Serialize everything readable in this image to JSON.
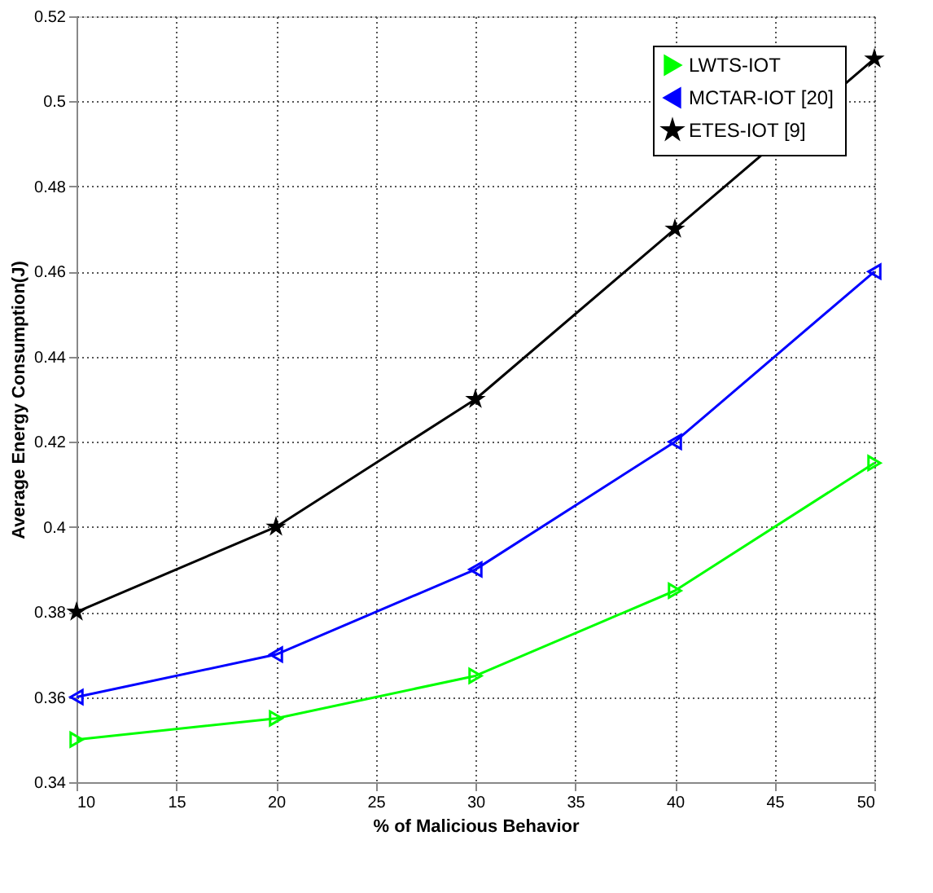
{
  "chart_data": {
    "type": "line",
    "xlabel": "% of Malicious Behavior",
    "ylabel": "Average Energy Consumption(J)",
    "x": [
      10,
      20,
      30,
      40,
      50
    ],
    "series": [
      {
        "name": "LWTS-IOT",
        "color": "#00ff00",
        "marker": "triangle-right",
        "values": [
          0.35,
          0.355,
          0.365,
          0.385,
          0.415
        ]
      },
      {
        "name": "MCTAR-IOT [20]",
        "color": "#0000ff",
        "marker": "triangle-left",
        "values": [
          0.36,
          0.37,
          0.39,
          0.42,
          0.46
        ]
      },
      {
        "name": "ETES-IOT [9]",
        "color": "#000000",
        "marker": "star",
        "values": [
          0.38,
          0.4,
          0.43,
          0.47,
          0.51
        ]
      }
    ],
    "xlim": [
      10,
      50
    ],
    "xticks": [
      10,
      15,
      20,
      25,
      30,
      35,
      40,
      45,
      50
    ],
    "ylim": [
      0.34,
      0.52
    ],
    "yticks": [
      0.34,
      0.36,
      0.38,
      0.4,
      0.42,
      0.44,
      0.46,
      0.48,
      0.5,
      0.52
    ],
    "grid": true,
    "legend": "top right",
    "line_style": "solid"
  }
}
